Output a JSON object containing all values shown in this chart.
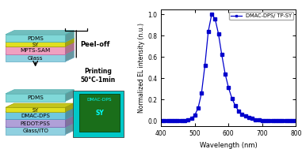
{
  "title": "",
  "plot_xlim": [
    400,
    800
  ],
  "plot_ylim": [
    -0.05,
    1.05
  ],
  "xlabel": "Wavelength (nm)",
  "ylabel": "Normalized EL intensity (n.u.)",
  "legend_label": "DMAC-DPS/ TP-SY",
  "line_color": "#0000cc",
  "peel_off_text": "Peel-off",
  "printing_text": "Printing\n50°C-1min",
  "layers_top": [
    {
      "label": "PDMS",
      "color": "#80d8d8",
      "edge": "#50b0b0"
    },
    {
      "label": "SY",
      "color": "#e0e020",
      "edge": "#a0a000"
    },
    {
      "label": "MPTS-SAM",
      "color": "#f0a0c0",
      "edge": "#c060a0"
    },
    {
      "label": "Glass",
      "color": "#90d0e0",
      "edge": "#60a8c0"
    }
  ],
  "layers_bot": [
    {
      "label": "PDMS",
      "color": "#80d8d8",
      "edge": "#50b0b0"
    },
    {
      "label": "SY",
      "color": "#e0e020",
      "edge": "#a0a000"
    },
    {
      "label": "DMAC-DPS",
      "color": "#70c8e0",
      "edge": "#40a0c0"
    },
    {
      "label": "PEDOT:PSS",
      "color": "#b0a0d8",
      "edge": "#8060b0"
    },
    {
      "label": "Glass/ITO",
      "color": "#90d0e0",
      "edge": "#60a8c0"
    }
  ],
  "wavelengths": [
    400,
    410,
    420,
    430,
    440,
    450,
    460,
    470,
    480,
    490,
    500,
    510,
    520,
    530,
    540,
    550,
    560,
    570,
    580,
    590,
    600,
    610,
    620,
    630,
    640,
    650,
    660,
    670,
    680,
    690,
    700,
    710,
    720,
    730,
    740,
    750,
    760,
    770,
    780,
    790,
    800
  ],
  "el_values": [
    0.0,
    0.0,
    0.0,
    0.0,
    0.0,
    0.0,
    0.0,
    0.0,
    0.01,
    0.02,
    0.05,
    0.12,
    0.26,
    0.52,
    0.84,
    1.0,
    0.96,
    0.82,
    0.62,
    0.44,
    0.31,
    0.21,
    0.14,
    0.09,
    0.06,
    0.04,
    0.03,
    0.02,
    0.01,
    0.01,
    0.0,
    0.0,
    0.0,
    0.0,
    0.0,
    0.0,
    0.0,
    0.0,
    0.0,
    0.0,
    0.0
  ],
  "xticks": [
    400,
    500,
    600,
    700,
    800
  ],
  "yticks": [
    0.0,
    0.2,
    0.4,
    0.6,
    0.8,
    1.0
  ],
  "bg_color": "#ffffff",
  "photo_bg": "#00c8c8",
  "photo_sq_color": "#1a6e1a",
  "photo_text1": "DMAC-DPS",
  "photo_text2": "SY"
}
